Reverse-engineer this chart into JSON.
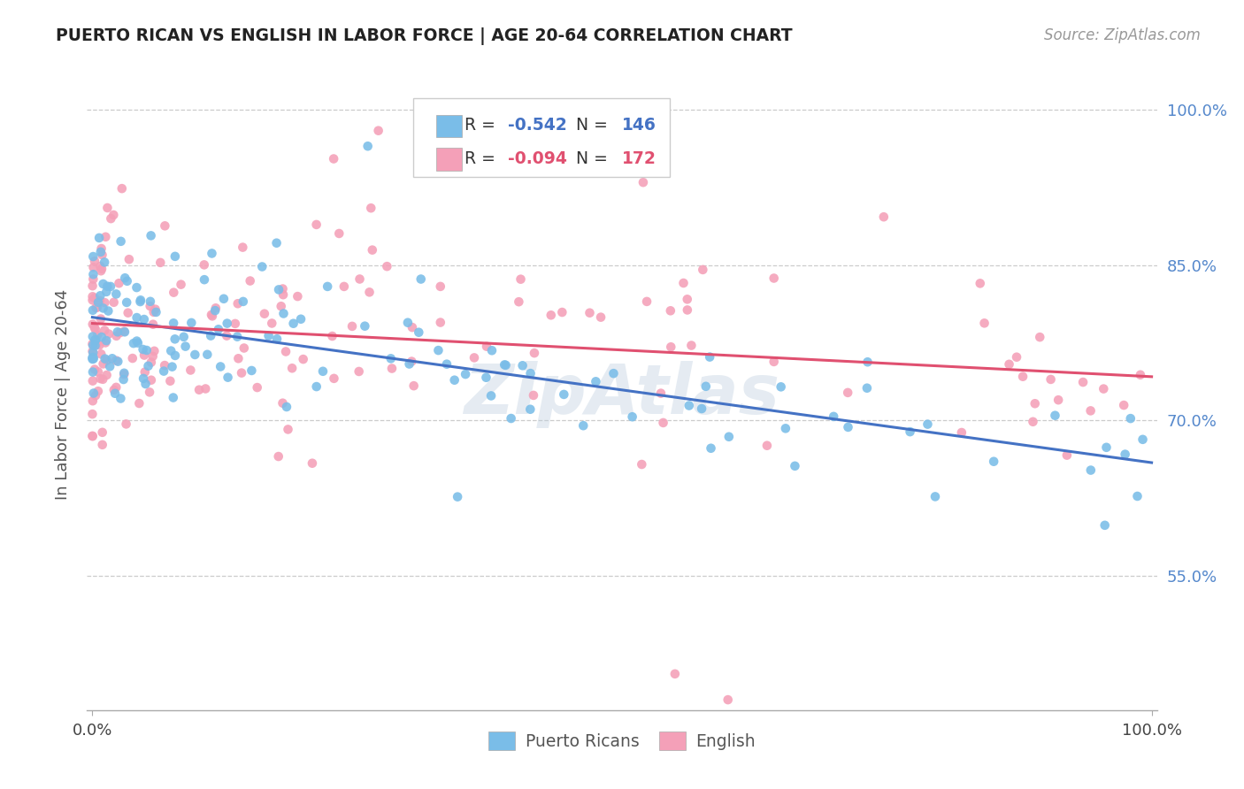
{
  "title": "PUERTO RICAN VS ENGLISH IN LABOR FORCE | AGE 20-64 CORRELATION CHART",
  "source": "Source: ZipAtlas.com",
  "ylabel": "In Labor Force | Age 20-64",
  "legend_blue_r": "-0.542",
  "legend_blue_n": "146",
  "legend_pink_r": "-0.094",
  "legend_pink_n": "172",
  "legend_label_blue": "Puerto Ricans",
  "legend_label_pink": "English",
  "blue_color": "#7abde8",
  "pink_color": "#f4a0b8",
  "blue_line_color": "#4472C4",
  "pink_line_color": "#E05070",
  "ytick_values": [
    0.55,
    0.7,
    0.85,
    1.0
  ],
  "ytick_labels": [
    "55.0%",
    "70.0%",
    "85.0%",
    "100.0%"
  ],
  "xlim": [
    0.0,
    1.0
  ],
  "ylim": [
    0.42,
    1.03
  ]
}
